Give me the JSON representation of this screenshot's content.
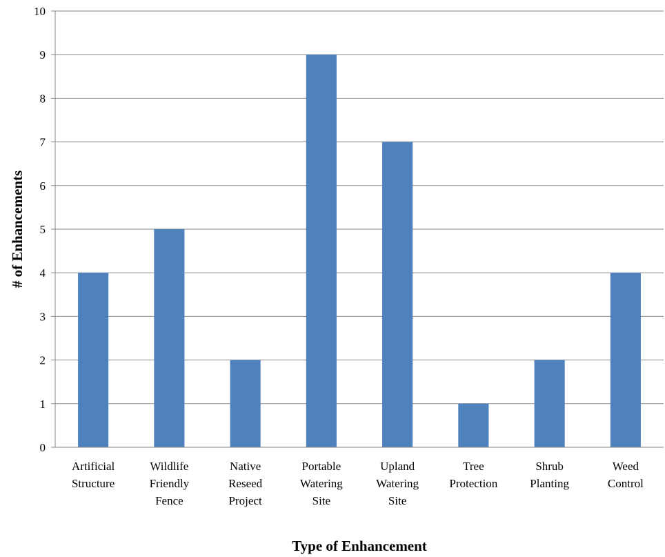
{
  "chart_data": {
    "type": "bar",
    "categories": [
      [
        "Artificial",
        "Structure"
      ],
      [
        "Wildlife",
        "Friendly",
        "Fence"
      ],
      [
        "Native",
        "Reseed",
        "Project"
      ],
      [
        "Portable",
        "Watering",
        "Site"
      ],
      [
        "Upland",
        "Watering",
        "Site"
      ],
      [
        "Tree",
        "Protection"
      ],
      [
        "Shrub",
        "Planting"
      ],
      [
        "Weed",
        "Control"
      ]
    ],
    "values": [
      4,
      5,
      2,
      9,
      7,
      1,
      2,
      4
    ],
    "xlabel": "Type of Enhancement",
    "ylabel": "# of Enhancements",
    "ylim": [
      0,
      10
    ],
    "yticks": [
      "0",
      "1",
      "2",
      "3",
      "4",
      "5",
      "6",
      "7",
      "8",
      "9",
      "10"
    ],
    "bar_color": "#4f81bd",
    "grid": true,
    "legend": "none"
  }
}
